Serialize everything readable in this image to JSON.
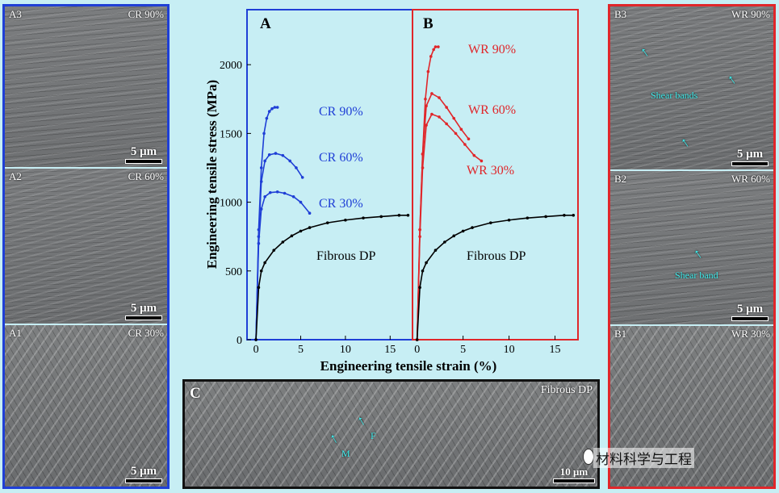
{
  "left_column": {
    "panels": [
      {
        "tag": "A3",
        "label": "CR 90%",
        "scale": "5 μm"
      },
      {
        "tag": "A2",
        "label": "CR 60%",
        "scale": "5 μm"
      },
      {
        "tag": "A1",
        "label": "CR 30%",
        "scale": "5 μm"
      }
    ]
  },
  "right_column": {
    "panels": [
      {
        "tag": "B3",
        "label": "WR 90%",
        "scale": "5 μm",
        "annotation": "Shear bands"
      },
      {
        "tag": "B2",
        "label": "WR 60%",
        "scale": "5 μm",
        "annotation": "Shear band"
      },
      {
        "tag": "B1",
        "label": "WR 30%",
        "scale": "5 μm"
      }
    ]
  },
  "bottom_panel": {
    "tag": "C",
    "label": "Fibrous DP",
    "scale": "10 μm",
    "mark_m": "M",
    "mark_f": "F"
  },
  "watermark": "材料科学与工程",
  "colors": {
    "cr": "#1f3fd6",
    "wr": "#e0262a",
    "fibrous": "#000000",
    "background": "#c7eef4"
  },
  "chart_data": {
    "type": "line",
    "ylabel": "Engineering tensile stress (MPa)",
    "xlabel": "Engineering tensile strain (%)",
    "ylim": [
      0,
      2400
    ],
    "yticks": [
      "0",
      "500",
      "1000",
      "1500",
      "2000"
    ],
    "panels": [
      {
        "id": "A",
        "xlim": [
          -1,
          17.5
        ],
        "xticks": [
          "0",
          "5",
          "10",
          "15"
        ],
        "series": [
          {
            "name": "CR 90%",
            "x": [
              0,
              0.3,
              0.6,
              0.9,
              1.2,
              1.5,
              1.8,
              2.1,
              2.4
            ],
            "y": [
              0,
              800,
              1250,
              1500,
              1610,
              1660,
              1680,
              1690,
              1690
            ]
          },
          {
            "name": "CR 60%",
            "x": [
              0,
              0.3,
              0.6,
              1.0,
              1.5,
              2.2,
              3.0,
              3.8,
              4.5,
              5.2
            ],
            "y": [
              0,
              750,
              1150,
              1300,
              1345,
              1355,
              1340,
              1300,
              1250,
              1180
            ]
          },
          {
            "name": "CR 30%",
            "x": [
              0,
              0.3,
              0.6,
              1.0,
              1.6,
              2.4,
              3.2,
              4.2,
              5.0,
              6.0
            ],
            "y": [
              0,
              700,
              950,
              1040,
              1070,
              1075,
              1065,
              1040,
              1000,
              920
            ]
          },
          {
            "name": "Fibrous DP",
            "x": [
              0,
              0.3,
              0.6,
              1,
              2,
              3,
              4,
              5,
              6,
              8,
              10,
              12,
              14,
              16,
              17
            ],
            "y": [
              0,
              380,
              500,
              560,
              650,
              710,
              755,
              790,
              815,
              850,
              870,
              885,
              895,
              905,
              905
            ]
          }
        ]
      },
      {
        "id": "B",
        "xlim": [
          -0.5,
          17.5
        ],
        "xticks": [
          "0",
          "5",
          "10",
          "15"
        ],
        "series": [
          {
            "name": "WR 90%",
            "x": [
              0,
              0.3,
              0.6,
              0.9,
              1.2,
              1.5,
              1.8,
              2.0,
              2.3
            ],
            "y": [
              0,
              800,
              1350,
              1750,
              1950,
              2060,
              2110,
              2130,
              2130
            ]
          },
          {
            "name": "WR 60%",
            "x": [
              0,
              0.3,
              0.6,
              1.0,
              1.6,
              2.4,
              3.2,
              4.0,
              4.8,
              5.6
            ],
            "y": [
              0,
              800,
              1350,
              1700,
              1790,
              1760,
              1690,
              1610,
              1530,
              1460
            ]
          },
          {
            "name": "WR 30%",
            "x": [
              0,
              0.3,
              0.6,
              1.0,
              1.6,
              2.4,
              3.2,
              4.2,
              5.2,
              6.2,
              7.0
            ],
            "y": [
              0,
              750,
              1250,
              1560,
              1640,
              1620,
              1570,
              1500,
              1420,
              1340,
              1300
            ]
          },
          {
            "name": "Fibrous DP",
            "x": [
              0,
              0.3,
              0.6,
              1,
              2,
              3,
              4,
              5,
              6,
              8,
              10,
              12,
              14,
              16,
              17
            ],
            "y": [
              0,
              380,
              500,
              560,
              650,
              710,
              755,
              790,
              815,
              850,
              870,
              885,
              895,
              905,
              905
            ]
          }
        ]
      }
    ]
  }
}
